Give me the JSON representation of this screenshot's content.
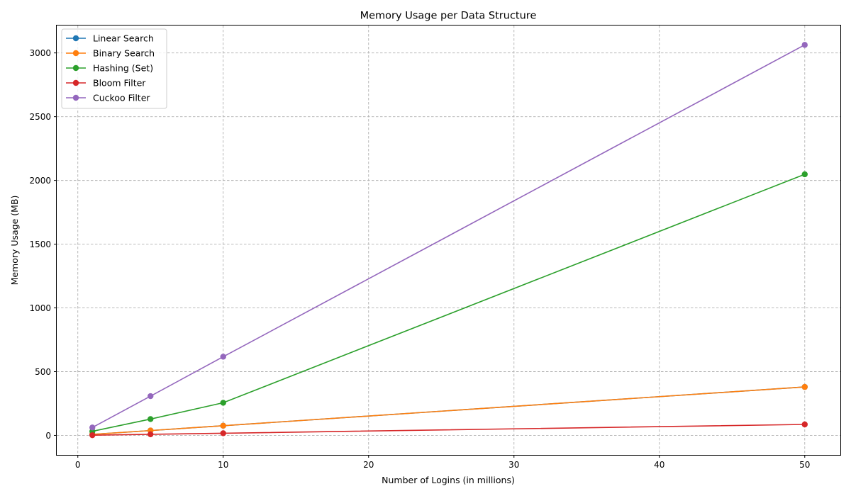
{
  "chart_data": {
    "type": "line",
    "title": "Memory Usage per Data Structure",
    "xlabel": "Number of Logins (in millions)",
    "ylabel": "Memory Usage (MB)",
    "x": [
      1,
      5,
      10,
      50
    ],
    "xlim": [
      -1.45,
      52.45
    ],
    "ylim": [
      -153,
      3215
    ],
    "xticks": [
      0,
      10,
      20,
      30,
      40,
      50
    ],
    "yticks": [
      0,
      500,
      1000,
      1500,
      2000,
      2500,
      3000
    ],
    "grid": true,
    "legend_position": "upper-left",
    "series": [
      {
        "name": "Linear Search",
        "color": "#1f77b4",
        "values": [
          7.6,
          38,
          76,
          380
        ]
      },
      {
        "name": "Binary Search",
        "color": "#ff7f0e",
        "values": [
          7.6,
          38,
          76,
          380
        ]
      },
      {
        "name": "Hashing (Set)",
        "color": "#2ca02c",
        "values": [
          32,
          128,
          256,
          2048
        ]
      },
      {
        "name": "Bloom Filter",
        "color": "#d62728",
        "values": [
          1.7,
          8.6,
          17,
          86
        ]
      },
      {
        "name": "Cuckoo Filter",
        "color": "#9467bd",
        "values": [
          62,
          308,
          617,
          3063
        ]
      }
    ]
  }
}
